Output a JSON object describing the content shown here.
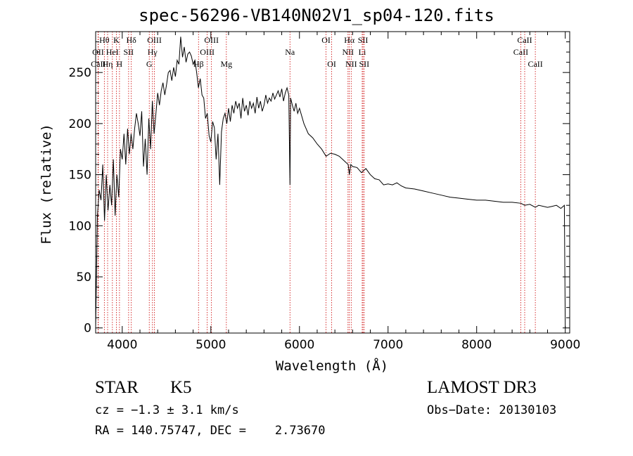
{
  "chart_data": {
    "type": "line",
    "title": "spec-56296-VB140N02V1_sp04-120.fits",
    "xlabel": "Wavelength (Å)",
    "ylabel": "Flux (relative)",
    "xlim": [
      3700,
      9050
    ],
    "ylim": [
      -5,
      290
    ],
    "xticks": [
      4000,
      5000,
      6000,
      7000,
      8000,
      9000
    ],
    "yticks": [
      0,
      50,
      100,
      150,
      200,
      250
    ],
    "series": [
      {
        "name": "spectrum",
        "x": [
          3700,
          3720,
          3740,
          3760,
          3780,
          3800,
          3820,
          3840,
          3860,
          3880,
          3900,
          3920,
          3940,
          3960,
          3980,
          4000,
          4020,
          4040,
          4060,
          4080,
          4100,
          4120,
          4140,
          4160,
          4180,
          4200,
          4220,
          4240,
          4260,
          4280,
          4300,
          4320,
          4340,
          4360,
          4380,
          4400,
          4420,
          4440,
          4460,
          4480,
          4500,
          4520,
          4540,
          4560,
          4580,
          4600,
          4620,
          4640,
          4660,
          4680,
          4700,
          4720,
          4740,
          4760,
          4780,
          4800,
          4820,
          4840,
          4860,
          4880,
          4900,
          4920,
          4940,
          4960,
          4980,
          5000,
          5020,
          5040,
          5060,
          5080,
          5100,
          5120,
          5140,
          5160,
          5180,
          5200,
          5220,
          5240,
          5260,
          5280,
          5300,
          5320,
          5340,
          5360,
          5380,
          5400,
          5420,
          5440,
          5460,
          5480,
          5500,
          5520,
          5540,
          5560,
          5580,
          5600,
          5620,
          5640,
          5660,
          5680,
          5700,
          5720,
          5740,
          5760,
          5780,
          5800,
          5820,
          5840,
          5860,
          5880,
          5893,
          5900,
          5920,
          5940,
          5960,
          5980,
          6000,
          6050,
          6100,
          6150,
          6200,
          6250,
          6300,
          6350,
          6400,
          6450,
          6500,
          6550,
          6563,
          6580,
          6600,
          6650,
          6700,
          6750,
          6800,
          6850,
          6900,
          6950,
          7000,
          7050,
          7100,
          7150,
          7200,
          7300,
          7400,
          7500,
          7600,
          7700,
          7800,
          7900,
          8000,
          8100,
          8200,
          8300,
          8400,
          8500,
          8542,
          8600,
          8662,
          8700,
          8800,
          8850,
          8900,
          8950,
          8990,
          9000
        ],
        "y": [
          0,
          110,
          135,
          125,
          160,
          105,
          150,
          115,
          140,
          120,
          165,
          110,
          150,
          128,
          175,
          165,
          190,
          160,
          195,
          170,
          190,
          175,
          195,
          210,
          200,
          188,
          212,
          158,
          185,
          150,
          205,
          175,
          222,
          190,
          210,
          230,
          218,
          232,
          240,
          228,
          238,
          250,
          252,
          242,
          255,
          246,
          262,
          258,
          285,
          265,
          275,
          260,
          268,
          270,
          266,
          258,
          262,
          250,
          235,
          244,
          228,
          225,
          205,
          210,
          188,
          182,
          202,
          196,
          165,
          190,
          140,
          192,
          205,
          210,
          200,
          215,
          202,
          218,
          210,
          222,
          215,
          220,
          205,
          225,
          212,
          218,
          208,
          222,
          215,
          220,
          210,
          226,
          215,
          222,
          212,
          218,
          228,
          220,
          225,
          222,
          230,
          224,
          228,
          232,
          226,
          234,
          222,
          230,
          235,
          228,
          140,
          225,
          218,
          212,
          220,
          210,
          215,
          200,
          190,
          186,
          180,
          175,
          168,
          171,
          170,
          168,
          164,
          160,
          150,
          160,
          158,
          157,
          152,
          156,
          150,
          146,
          145,
          140,
          141,
          140,
          142,
          139,
          137,
          136,
          134,
          132,
          130,
          128,
          127,
          126,
          125,
          125,
          124,
          123,
          123,
          122,
          120,
          121,
          118,
          120,
          118,
          119,
          120,
          117,
          120,
          0
        ]
      }
    ],
    "line_markers": [
      {
        "label": "Hθ",
        "x": 3798,
        "row": 0
      },
      {
        "label": "OII",
        "x": 3727,
        "row": 1
      },
      {
        "label": "CaII",
        "x": 3730,
        "row": 2
      },
      {
        "label": "Hη",
        "x": 3835,
        "row": 2
      },
      {
        "label": "HeI",
        "x": 3889,
        "row": 1
      },
      {
        "label": "K",
        "x": 3934,
        "row": 0
      },
      {
        "label": "H",
        "x": 3969,
        "row": 2
      },
      {
        "label": "SII",
        "x": 4072,
        "row": 1
      },
      {
        "label": "Hδ",
        "x": 4102,
        "row": 0
      },
      {
        "label": "OIII",
        "x": 4363,
        "row": 0
      },
      {
        "label": "Hγ",
        "x": 4341,
        "row": 1
      },
      {
        "label": "G",
        "x": 4305,
        "row": 2
      },
      {
        "label": "Hβ",
        "x": 4861,
        "row": 2
      },
      {
        "label": "OIII",
        "x": 4959,
        "row": 1
      },
      {
        "label": "OIII",
        "x": 5007,
        "row": 0
      },
      {
        "label": "Mg",
        "x": 5175,
        "row": 2
      },
      {
        "label": "Na",
        "x": 5893,
        "row": 1
      },
      {
        "label": "OI",
        "x": 6300,
        "row": 0
      },
      {
        "label": "OI",
        "x": 6364,
        "row": 2
      },
      {
        "label": "NII",
        "x": 6548,
        "row": 1
      },
      {
        "label": "Hα",
        "x": 6563,
        "row": 0
      },
      {
        "label": "NII",
        "x": 6584,
        "row": 2
      },
      {
        "label": "SII",
        "x": 6717,
        "row": 0
      },
      {
        "label": "Li",
        "x": 6708,
        "row": 1
      },
      {
        "label": "SII",
        "x": 6731,
        "row": 2
      },
      {
        "label": "CaII",
        "x": 8498,
        "row": 1
      },
      {
        "label": "CaII",
        "x": 8542,
        "row": 0
      },
      {
        "label": "CaII",
        "x": 8662,
        "row": 2
      }
    ],
    "marker_color": "#cc0000"
  },
  "info": {
    "object_class": "STAR",
    "subclass": "K5",
    "survey": "LAMOST DR3",
    "cz": "cz = −1.3 ± 3.1 km/s",
    "obs_date": "Obs−Date: 20130103",
    "coords": "RA = 140.75747, DEC =    2.73670"
  }
}
